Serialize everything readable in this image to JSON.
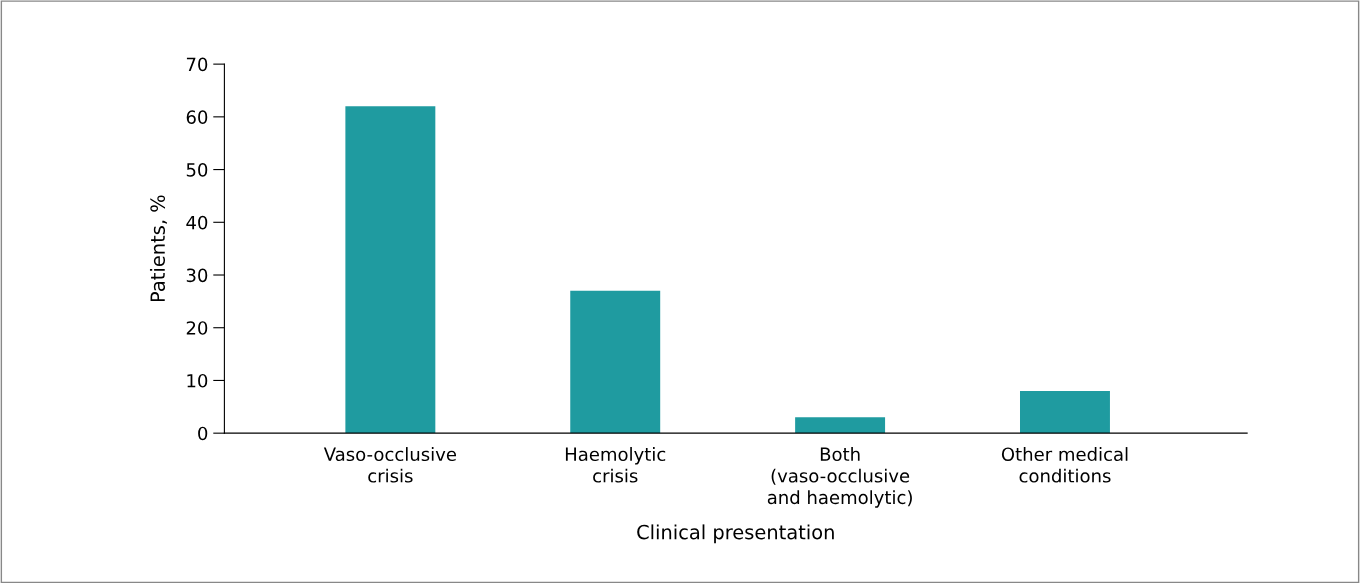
{
  "chart_data": {
    "type": "bar",
    "xlabel": "Clinical presentation",
    "ylabel": "Patients, %",
    "categories": [
      "Vaso-occlusive\ncrisis",
      "Haemolytic\ncrisis",
      "Both\n(vaso-occlusive\nand haemolytic)",
      "Other medical\nconditions"
    ],
    "values": [
      62,
      27,
      3,
      8
    ],
    "color": "#1f9ba0",
    "ylim": [
      0,
      70
    ],
    "yticks": [
      0,
      10,
      20,
      30,
      40,
      50,
      60,
      70
    ],
    "grid": false,
    "legend": false
  }
}
